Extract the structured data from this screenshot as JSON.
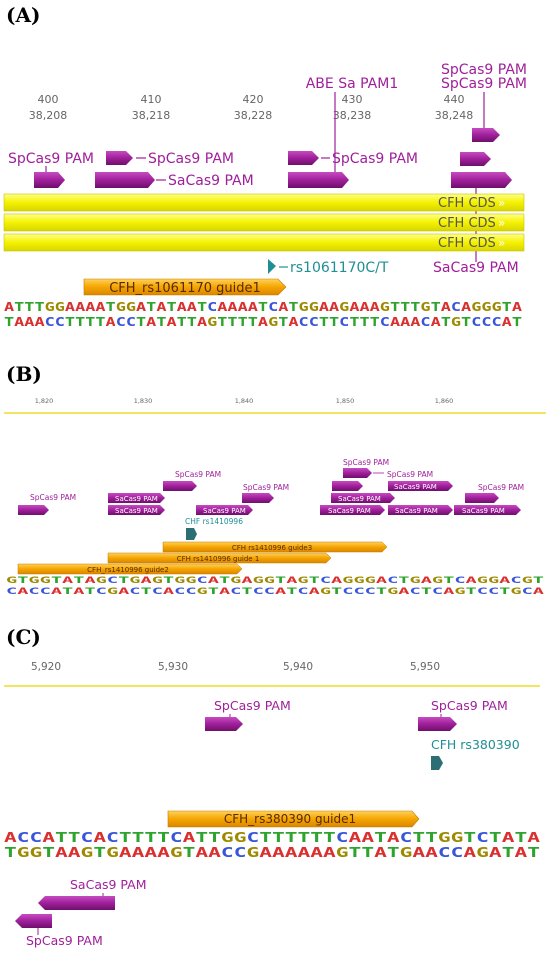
{
  "panels": {
    "a": {
      "label": "(A)",
      "ticks": [
        {
          "pos": "400",
          "coord": "38,208"
        },
        {
          "pos": "410",
          "coord": "38,218"
        },
        {
          "pos": "420",
          "coord": "38,228"
        },
        {
          "pos": "430",
          "coord": "38,238"
        },
        {
          "pos": "440",
          "coord": "38,248"
        }
      ],
      "features": {
        "spcas9": "SpCas9 PAM",
        "sacas9": "SaCas9 PAM",
        "abe": "ABE Sa PAM1",
        "cds": "CFH CDS",
        "variant": "rs1061170C/T",
        "guide": "CFH_rs1061170 guide1"
      },
      "seq_top": "ATTTGGAAAATGGATATAATCAAAATCATGGAAGAAAGTTTGTACAGGGTA",
      "seq_bottom": "TAAACCTTTTACCTATATTAGTTTTAGTACCTTCTTTCAAACATGTCCCAT"
    },
    "b": {
      "label": "(B)",
      "ticks": [
        "1,820",
        "1,830",
        "1,840",
        "1,850",
        "1,860"
      ],
      "features": {
        "spcas9": "SpCas9 PAM",
        "sacas9": "SaCas9 PAM",
        "variant": "CHF rs1410996",
        "guide3": "CFH rs1410996 guide3",
        "guide1": "CFH rs1410996 guide 1",
        "guide2": "CFH_rs1410996 guide2"
      },
      "seq_top": "GTGGTATAGCTGAGTGGCATGAGGTAGTCAGGGACTGAGTCAGGACGT",
      "seq_bottom": "CACCATATCGACTCACCGTACTCCATCAGTCCCTGACTCAGTCCTGCA"
    },
    "c": {
      "label": "(C)",
      "ticks": [
        "5,920",
        "5,930",
        "5,940",
        "5,950"
      ],
      "features": {
        "spcas9": "SpCas9 PAM",
        "sacas9": "SaCas9 PAM",
        "variant": "CFH rs380390",
        "guide": "CFH_rs380390 guide1"
      },
      "seq_top": "ACCATTCACTTTTCATTGGCTTTTTTCAATACTTGGTCTATA",
      "seq_bottom": "TGGTAAGTGAAAAGTAACCGAAAAAAGTTATGAACCAGATAT"
    }
  },
  "colors": {
    "feature": "#a0209b",
    "cds": "#f4f200",
    "guide": "#f5a500",
    "variant": "#1f8f96",
    "base_A": "#d93030",
    "base_T": "#2ea42e",
    "base_G": "#9c8a00",
    "base_C": "#3a56d8"
  }
}
